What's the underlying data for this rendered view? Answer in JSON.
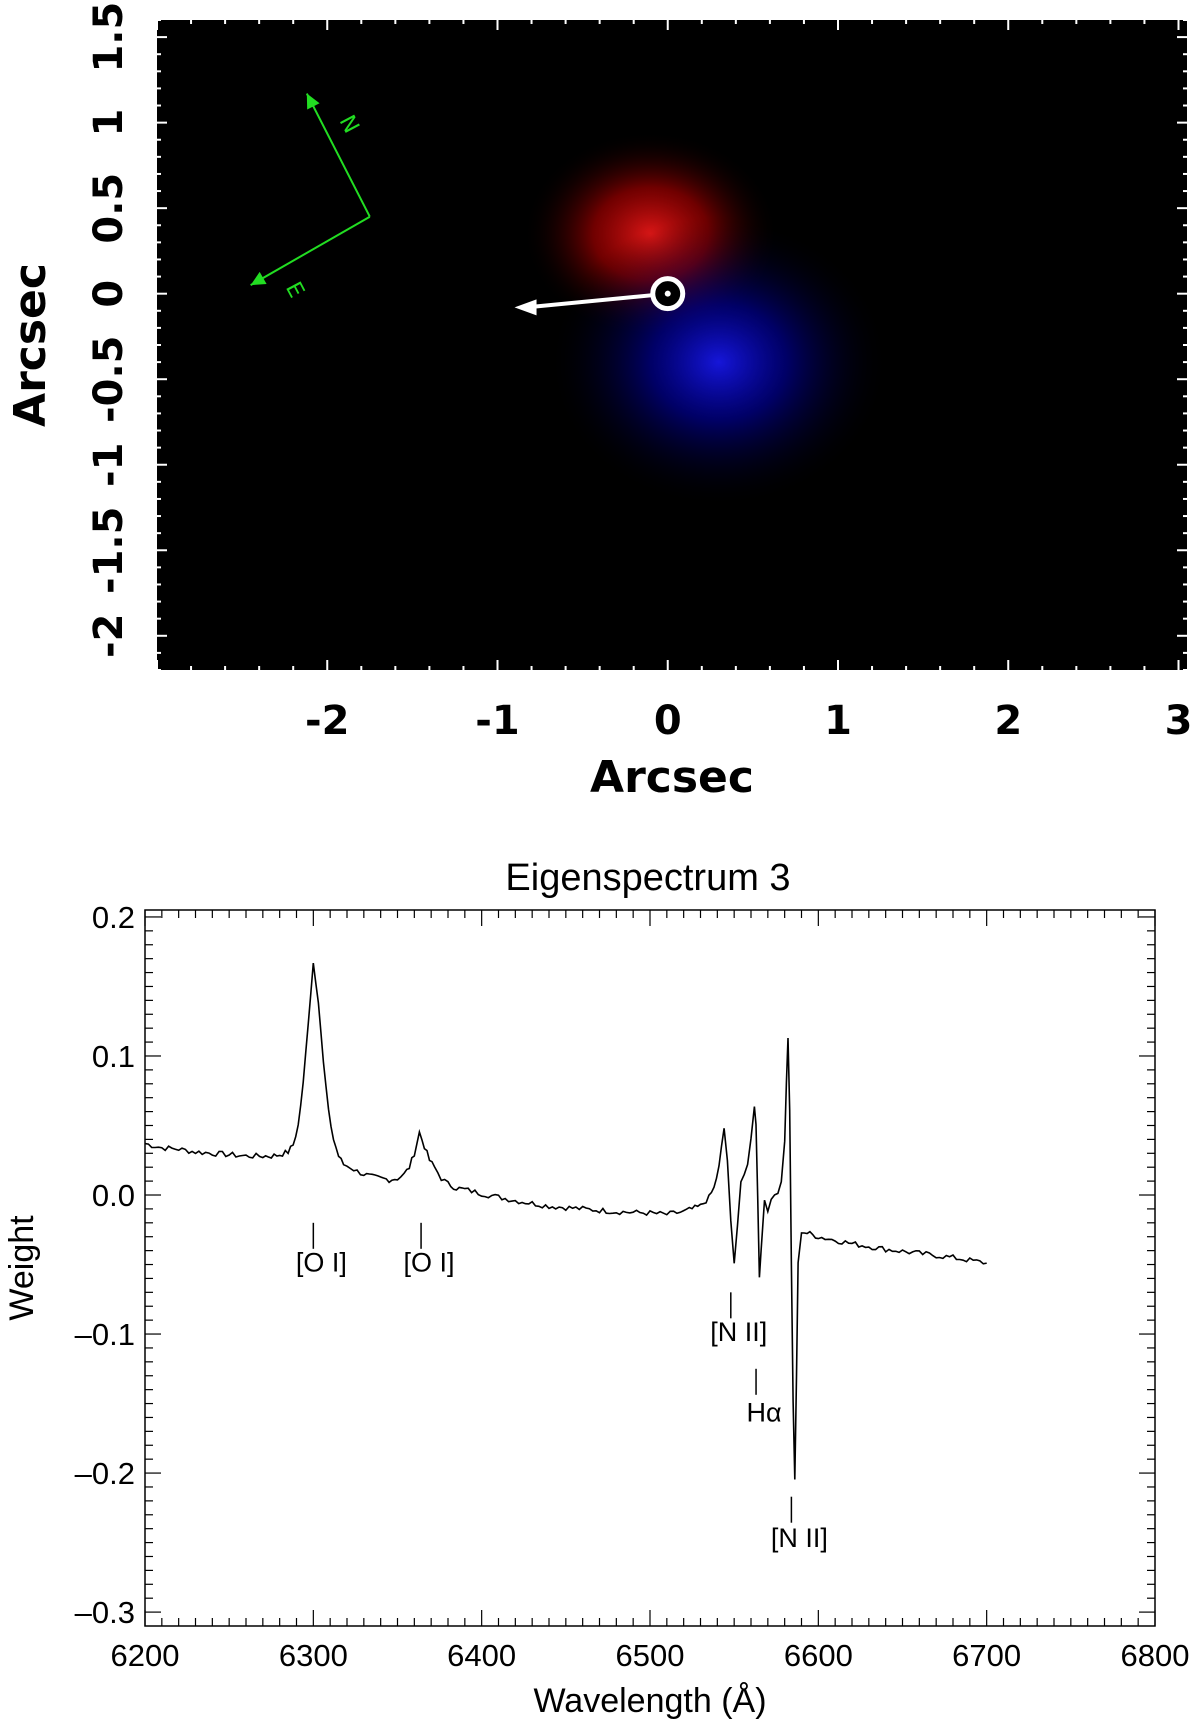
{
  "chart_data": [
    {
      "type": "heatmap",
      "xlabel": "Arcsec",
      "ylabel": "Arcsec",
      "xlim": [
        -3.0,
        3.05
      ],
      "ylim": [
        -2.2,
        1.6
      ],
      "xticks": [
        "-2",
        "-1",
        "0",
        "1",
        "2",
        "3"
      ],
      "yticks": [
        "-2",
        "-1.5",
        "-1",
        "-0.5",
        "0",
        "0.5",
        "1",
        "1.5"
      ],
      "xtick_values": [
        -2,
        -1,
        0,
        1,
        2,
        3
      ],
      "ytick_values": [
        -2,
        -1.5,
        -1,
        -0.5,
        0,
        0.5,
        1,
        1.5
      ],
      "background": "#000000",
      "blobs": [
        {
          "color": "#ff1a1a",
          "center": [
            -0.1,
            0.35
          ],
          "radius": [
            0.75,
            0.6
          ]
        },
        {
          "color": "#1a1aff",
          "center": [
            0.3,
            -0.4
          ],
          "radius": [
            1.0,
            0.85
          ]
        }
      ],
      "star_marker": {
        "center": [
          0.0,
          0.0
        ],
        "color": "#ffffff"
      },
      "vector": {
        "from": [
          0.0,
          0.0
        ],
        "to": [
          -0.9,
          -0.08
        ],
        "color": "#ffffff"
      },
      "compass": {
        "color": "#22dd22",
        "origin": [
          -1.75,
          0.45
        ],
        "north_tip": [
          -2.12,
          1.17
        ],
        "east_tip": [
          -2.45,
          0.05
        ],
        "north_label": "N",
        "east_label": "E"
      }
    },
    {
      "type": "line",
      "title": "Eigenspectrum 3",
      "xlabel": "Wavelength (Å)",
      "ylabel": "Weight",
      "xlim": [
        6200,
        6800
      ],
      "ylim": [
        -0.31,
        0.205
      ],
      "xticks": [
        "6200",
        "6300",
        "6400",
        "6500",
        "6600",
        "6700",
        "6800"
      ],
      "xtick_values": [
        6200,
        6300,
        6400,
        6500,
        6600,
        6700,
        6800
      ],
      "yticks": [
        "0.2",
        "0.1",
        "0.0",
        "–0.1",
        "–0.2",
        "–0.3"
      ],
      "ytick_values": [
        0.2,
        0.1,
        0.0,
        -0.1,
        -0.2,
        -0.3
      ],
      "series": [
        {
          "color": "#000000",
          "x": [
            6200,
            6210,
            6220,
            6230,
            6240,
            6250,
            6260,
            6270,
            6275,
            6280,
            6285,
            6288,
            6291,
            6294,
            6297,
            6300,
            6303,
            6306,
            6309,
            6312,
            6315,
            6318,
            6322,
            6326,
            6330,
            6335,
            6340,
            6345,
            6350,
            6354,
            6357,
            6360,
            6363,
            6366,
            6369,
            6372,
            6376,
            6380,
            6385,
            6390,
            6400,
            6420,
            6440,
            6460,
            6480,
            6500,
            6510,
            6520,
            6525,
            6530,
            6535,
            6538,
            6541,
            6544,
            6546,
            6548,
            6550,
            6552,
            6554,
            6556,
            6558,
            6560,
            6562,
            6563,
            6564,
            6565,
            6566,
            6568,
            6570,
            6572,
            6574,
            6576,
            6578,
            6580,
            6581,
            6582,
            6583,
            6584,
            6585,
            6586,
            6587,
            6588,
            6590,
            6595,
            6600,
            6620,
            6640,
            6660,
            6680,
            6700
          ],
          "y": [
            0.037,
            0.034,
            0.033,
            0.031,
            0.03,
            0.029,
            0.028,
            0.028,
            0.028,
            0.029,
            0.031,
            0.036,
            0.05,
            0.08,
            0.125,
            0.167,
            0.14,
            0.095,
            0.06,
            0.04,
            0.028,
            0.022,
            0.02,
            0.017,
            0.015,
            0.013,
            0.012,
            0.011,
            0.012,
            0.015,
            0.02,
            0.03,
            0.045,
            0.035,
            0.025,
            0.02,
            0.012,
            0.008,
            0.005,
            0.004,
            0.001,
            -0.004,
            -0.008,
            -0.01,
            -0.012,
            -0.013,
            -0.014,
            -0.012,
            -0.01,
            -0.008,
            -0.002,
            0.005,
            0.02,
            0.048,
            0.025,
            -0.02,
            -0.05,
            -0.02,
            0.01,
            0.015,
            0.02,
            0.04,
            0.065,
            0.05,
            0.0,
            -0.058,
            -0.04,
            -0.003,
            -0.01,
            -0.005,
            0.0,
            0.003,
            0.01,
            0.04,
            0.08,
            0.114,
            0.06,
            -0.05,
            -0.15,
            -0.205,
            -0.13,
            -0.05,
            -0.026,
            -0.028,
            -0.03,
            -0.035,
            -0.039,
            -0.042,
            -0.045,
            -0.049
          ]
        }
      ],
      "annotations": [
        {
          "text": "[O I]",
          "x": 6300,
          "y": -0.02,
          "label_y": -0.055
        },
        {
          "text": "[O I]",
          "x": 6364,
          "y": -0.02,
          "label_y": -0.055
        },
        {
          "text": "[N II]",
          "x": 6548,
          "y": -0.07,
          "label_y": -0.105
        },
        {
          "text": "Hα",
          "x": 6563,
          "y": -0.125,
          "label_y": -0.163
        },
        {
          "text": "[N II]",
          "x": 6584,
          "y": -0.217,
          "label_y": -0.253
        }
      ]
    }
  ]
}
